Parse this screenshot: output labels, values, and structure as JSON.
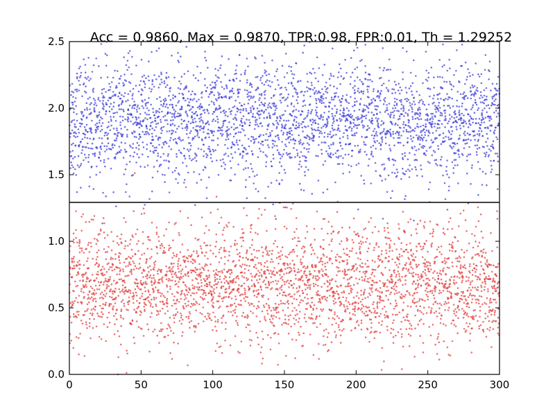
{
  "chart_data": {
    "type": "scatter",
    "title": "Acc = 0.9860, Max = 0.9870, TPR:0.98, FPR:0.01, Th = 1.29252",
    "xlabel": "",
    "ylabel": "",
    "xlim": [
      0,
      300
    ],
    "ylim": [
      0.0,
      2.5
    ],
    "xticks": [
      0,
      50,
      100,
      150,
      200,
      250,
      300
    ],
    "yticks": [
      0.0,
      0.5,
      1.0,
      1.5,
      2.0,
      2.5
    ],
    "xtick_labels": [
      "0",
      "50",
      "100",
      "150",
      "200",
      "250",
      "300"
    ],
    "ytick_labels": [
      "0.0",
      "0.5",
      "1.0",
      "1.5",
      "2.0",
      "2.5"
    ],
    "threshold": 1.29252,
    "grid": false,
    "legend": "none",
    "series": [
      {
        "color": "#3b3bd6",
        "description": "positive class scores",
        "points_per_x": 10,
        "distribution": {
          "mean": 1.9,
          "sd": 0.22
        },
        "approx_count": 3000
      },
      {
        "color": "#e03b3b",
        "description": "negative class scores",
        "points_per_x": 10,
        "distribution": {
          "mean": 0.68,
          "sd": 0.22
        },
        "approx_count": 3000
      }
    ]
  }
}
